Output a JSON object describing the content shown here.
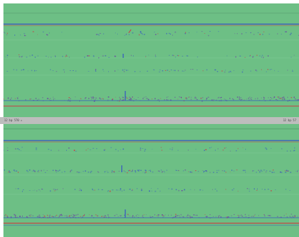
{
  "colors": {
    "panel_background": "#6dbf85",
    "divider": "#bdbdbd",
    "coverage_line": "#3e67b9",
    "mismatch_red": "#c04a4a",
    "feature_purple": "#6b4aa0",
    "background": "#ffffff"
  },
  "divider": {
    "left_label": "12 bp 570 ▸",
    "right_label": "12 bp 57"
  }
}
